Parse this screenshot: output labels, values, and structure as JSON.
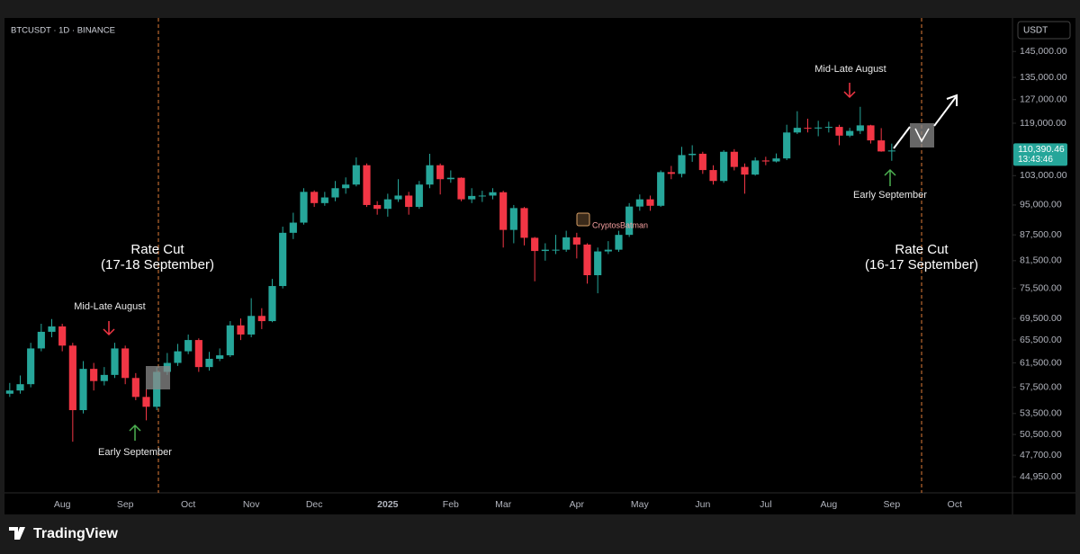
{
  "chart_data": {
    "type": "candlestick",
    "title": "BTCUSDT · 1D · BINANCE",
    "currency": "USDT",
    "log": true,
    "grid": false,
    "up_color": "#26a69a",
    "down_color": "#f23645",
    "categories": [
      null,
      null,
      null,
      null,
      null,
      "Aug",
      null,
      null,
      null,
      null,
      null,
      "Sep",
      null,
      null,
      null,
      null,
      null,
      "Oct",
      null,
      null,
      null,
      null,
      null,
      "Nov",
      null,
      null,
      null,
      null,
      null,
      "Dec",
      null,
      null,
      null,
      null,
      null,
      null,
      "2025",
      null,
      null,
      null,
      null,
      null,
      "Feb",
      null,
      null,
      null,
      null,
      "Mar",
      null,
      null,
      null,
      null,
      null,
      null,
      "Apr",
      null,
      null,
      null,
      null,
      null,
      "May",
      null,
      null,
      null,
      null,
      null,
      "Jun",
      null,
      null,
      null,
      null,
      null,
      "Jul",
      null,
      null,
      null,
      null,
      null,
      "Aug",
      null,
      null,
      null,
      null,
      null,
      "Sep",
      null,
      null,
      null,
      null,
      null,
      "Oct",
      null,
      null,
      null,
      null,
      null
    ],
    "open": [
      56500,
      57000,
      58000,
      64000,
      67000,
      68000,
      64500,
      54000,
      60500,
      58500,
      59500,
      64000,
      59000,
      56000,
      54500,
      60000,
      61500,
      63500,
      65500,
      60800,
      62200,
      62800,
      68200,
      66500,
      70000,
      69000,
      76000,
      88000,
      90500,
      98500,
      95500,
      97000,
      99500,
      100500,
      106000,
      95000,
      94000,
      96500,
      97500,
      94500,
      100500,
      106000,
      102000,
      102400,
      96500,
      97400,
      97500,
      98400,
      88700,
      94200,
      86800,
      83700,
      84000,
      84000,
      86900,
      85200,
      78300,
      83600,
      84000,
      87500,
      94600,
      96500,
      94800,
      104000,
      103500,
      109000,
      109400,
      104600,
      101500,
      110000,
      105500,
      103300,
      107400,
      107100,
      108000,
      116000,
      117500,
      117300,
      117600,
      117800,
      115000,
      116500,
      118300,
      113500,
      110100,
      null,
      null,
      null,
      null,
      null,
      null,
      null,
      null,
      null,
      null,
      null
    ],
    "high": [
      58200,
      59400,
      65000,
      68500,
      69400,
      68500,
      65000,
      61800,
      61500,
      60800,
      65000,
      64500,
      59800,
      57200,
      60800,
      63200,
      64800,
      66500,
      65800,
      63400,
      64000,
      69000,
      69500,
      73500,
      71500,
      77500,
      89500,
      93000,
      99500,
      98900,
      98500,
      101500,
      102500,
      108300,
      106500,
      96000,
      98000,
      102000,
      98500,
      101500,
      109400,
      106500,
      104500,
      102500,
      99500,
      98800,
      99500,
      98800,
      95000,
      94500,
      87000,
      85500,
      87500,
      88500,
      88000,
      85500,
      84500,
      86000,
      88500,
      95500,
      97800,
      97500,
      104500,
      105800,
      111500,
      112000,
      110000,
      106000,
      110500,
      110800,
      106500,
      108300,
      108500,
      109500,
      118500,
      123000,
      120500,
      119800,
      119500,
      118500,
      117500,
      124500,
      118500,
      117400,
      112500,
      null,
      null,
      null,
      null,
      null,
      null,
      null,
      null,
      null,
      null,
      null
    ],
    "low": [
      56000,
      56500,
      57500,
      63500,
      66000,
      63500,
      49500,
      53500,
      57000,
      57800,
      59000,
      58000,
      55500,
      52500,
      54000,
      59500,
      61000,
      63000,
      60000,
      60200,
      61800,
      62500,
      65500,
      66000,
      67500,
      68800,
      75500,
      86500,
      90000,
      94500,
      94800,
      96000,
      98000,
      100000,
      94500,
      92500,
      92000,
      95800,
      92500,
      94000,
      99500,
      97800,
      101000,
      96000,
      95500,
      95800,
      96500,
      84500,
      85500,
      85000,
      77000,
      81500,
      83000,
      83500,
      82000,
      76500,
      74500,
      83000,
      83500,
      87000,
      93500,
      93500,
      94500,
      102000,
      102500,
      107000,
      103500,
      100500,
      101000,
      104500,
      98000,
      103000,
      106000,
      106800,
      107500,
      115500,
      116000,
      114800,
      116000,
      112000,
      114500,
      115500,
      112500,
      110000,
      107300,
      null,
      null,
      null,
      null,
      null,
      null,
      null,
      null,
      null,
      null,
      null
    ],
    "close": [
      57000,
      58000,
      64000,
      67000,
      68000,
      64500,
      54000,
      60500,
      58500,
      59500,
      64000,
      59000,
      56000,
      54500,
      60000,
      61500,
      63500,
      65500,
      60800,
      62200,
      62800,
      68200,
      66500,
      70000,
      69000,
      76000,
      88000,
      90500,
      98500,
      95500,
      97000,
      99500,
      100500,
      106000,
      95000,
      94000,
      96500,
      97500,
      94500,
      100500,
      106000,
      102000,
      102400,
      96500,
      97400,
      97500,
      98400,
      88700,
      94200,
      86800,
      83700,
      84000,
      84000,
      86900,
      85200,
      78300,
      83600,
      84000,
      87500,
      94600,
      96500,
      94800,
      104000,
      103500,
      109000,
      109400,
      104600,
      101500,
      110000,
      105500,
      103300,
      107400,
      107100,
      108000,
      116000,
      117500,
      117300,
      117600,
      117800,
      115000,
      116500,
      118300,
      113500,
      110100,
      110390.46,
      null,
      null,
      null,
      null,
      null,
      null,
      null,
      null,
      null,
      null,
      null
    ],
    "ylim": [
      43000,
      159000
    ],
    "yticks": [
      {
        "value": 145000,
        "label": "145,000.00"
      },
      {
        "value": 135000,
        "label": "135,000.00"
      },
      {
        "value": 127000,
        "label": "127,000.00"
      },
      {
        "value": 119000,
        "label": "119,000.00"
      },
      {
        "value": 103000,
        "label": "103,000.00"
      },
      {
        "value": 95000,
        "label": "95,000.00"
      },
      {
        "value": 87500,
        "label": "87,500.00"
      },
      {
        "value": 81500,
        "label": "81,500.00"
      },
      {
        "value": 75500,
        "label": "75,500.00"
      },
      {
        "value": 69500,
        "label": "69,500.00"
      },
      {
        "value": 65500,
        "label": "65,500.00"
      },
      {
        "value": 61500,
        "label": "61,500.00"
      },
      {
        "value": 57500,
        "label": "57,500.00"
      },
      {
        "value": 53500,
        "label": "53,500.00"
      },
      {
        "value": 50500,
        "label": "50,500.00"
      },
      {
        "value": 47700,
        "label": "47,700.00"
      },
      {
        "value": 44950,
        "label": "44,950.00"
      }
    ],
    "last_price": {
      "value": 110390.46,
      "label": "110,390.46"
    },
    "countdown": "13:43:46",
    "annotations": {
      "rate_cut_2024": [
        "Rate Cut",
        "(17-18 September)"
      ],
      "mid_late_august_2024": "Mid-Late August",
      "early_september_2024": "Early September",
      "mid_late_august_2025": "Mid-Late August",
      "early_september_2025": "Early September",
      "rate_cut_2025": [
        "Rate Cut",
        "(16-17 September)"
      ],
      "watermark": "CryptosBatman"
    }
  },
  "footer": {
    "brand": "TradingView"
  }
}
